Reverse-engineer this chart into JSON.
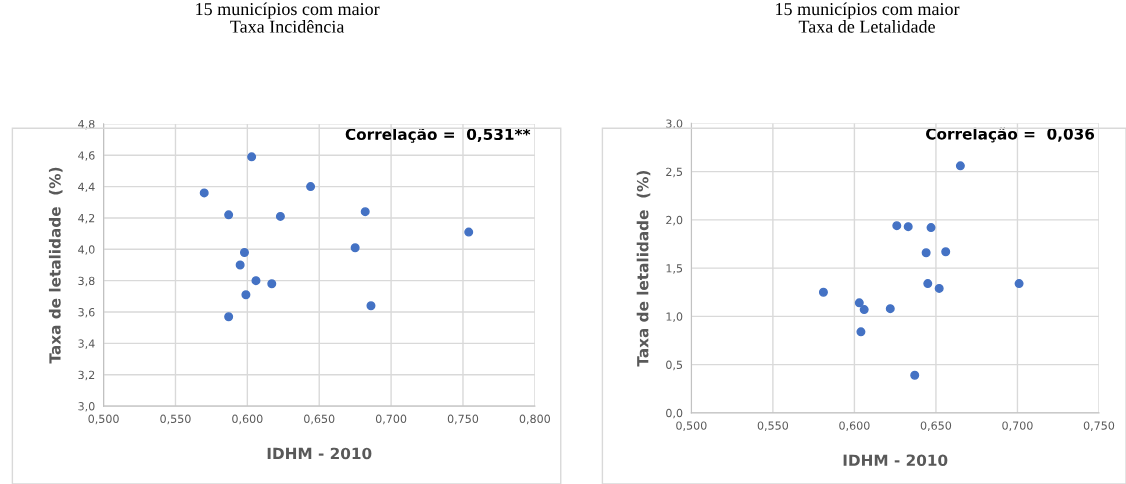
{
  "chart_data": [
    {
      "type": "scatter",
      "title": "15 municípios com maior\nTaxa Incidência",
      "xlabel": "IDHM - 2010",
      "ylabel": "Taxa de letalidade  (%)",
      "annotations": [
        "Correlação =  0,531**"
      ],
      "series": [
        {
          "color": "#4472c4",
          "x": [
            0.57,
            0.587,
            0.603,
            0.644,
            0.623,
            0.682,
            0.754,
            0.675,
            0.598,
            0.595,
            0.606,
            0.617,
            0.599,
            0.686,
            0.587
          ],
          "values": [
            4.36,
            4.22,
            4.59,
            4.4,
            4.21,
            4.24,
            4.11,
            4.01,
            3.98,
            3.9,
            3.8,
            3.78,
            3.71,
            3.64,
            3.57
          ]
        }
      ],
      "xlim": [
        0.5,
        0.8
      ],
      "ylim": [
        3.0,
        4.8
      ],
      "xticks": [
        {
          "value": 0.5,
          "label": "0,500"
        },
        {
          "value": 0.55,
          "label": "0,550"
        },
        {
          "value": 0.6,
          "label": "0,600"
        },
        {
          "value": 0.65,
          "label": "0,650"
        },
        {
          "value": 0.7,
          "label": "0,700"
        },
        {
          "value": 0.75,
          "label": "0,750"
        },
        {
          "value": 0.8,
          "label": "0,800"
        }
      ],
      "yticks": [
        {
          "value": 3.0,
          "label": "3,0"
        },
        {
          "value": 3.2,
          "label": "3,2"
        },
        {
          "value": 3.4,
          "label": "3,4"
        },
        {
          "value": 3.6,
          "label": "3,6"
        },
        {
          "value": 3.8,
          "label": "3,8"
        },
        {
          "value": 4.0,
          "label": "4,0"
        },
        {
          "value": 4.2,
          "label": "4,2"
        },
        {
          "value": 4.4,
          "label": "4,4"
        },
        {
          "value": 4.6,
          "label": "4,6"
        },
        {
          "value": 4.8,
          "label": "4,8"
        }
      ],
      "grid": true,
      "marker": "circle"
    },
    {
      "type": "scatter",
      "title": "15 municípios com maior\nTaxa de Letalidade",
      "xlabel": "IDHM - 2010",
      "ylabel": "Taxa de letalidade  (%)",
      "annotations": [
        "Correlação =  0,036"
      ],
      "series": [
        {
          "color": "#4472c4",
          "x": [
            0.665,
            0.626,
            0.633,
            0.647,
            0.644,
            0.656,
            0.645,
            0.652,
            0.701,
            0.581,
            0.603,
            0.606,
            0.622,
            0.604,
            0.637
          ],
          "values": [
            2.56,
            1.94,
            1.93,
            1.92,
            1.66,
            1.67,
            1.34,
            1.29,
            1.34,
            1.25,
            1.14,
            1.07,
            1.08,
            0.84,
            0.39
          ]
        }
      ],
      "xlim": [
        0.5,
        0.75
      ],
      "ylim": [
        0.0,
        3.0
      ],
      "xticks": [
        {
          "value": 0.5,
          "label": "0,500"
        },
        {
          "value": 0.55,
          "label": "0,550"
        },
        {
          "value": 0.6,
          "label": "0,600"
        },
        {
          "value": 0.65,
          "label": "0,650"
        },
        {
          "value": 0.7,
          "label": "0,700"
        },
        {
          "value": 0.75,
          "label": "0,750"
        }
      ],
      "yticks": [
        {
          "value": 0.0,
          "label": "0,0"
        },
        {
          "value": 0.5,
          "label": "0,5"
        },
        {
          "value": 1.0,
          "label": "1,0"
        },
        {
          "value": 1.5,
          "label": "1,5"
        },
        {
          "value": 2.0,
          "label": "2,0"
        },
        {
          "value": 2.5,
          "label": "2,5"
        },
        {
          "value": 3.0,
          "label": "3,0"
        }
      ],
      "grid": true,
      "marker": "circle"
    }
  ]
}
